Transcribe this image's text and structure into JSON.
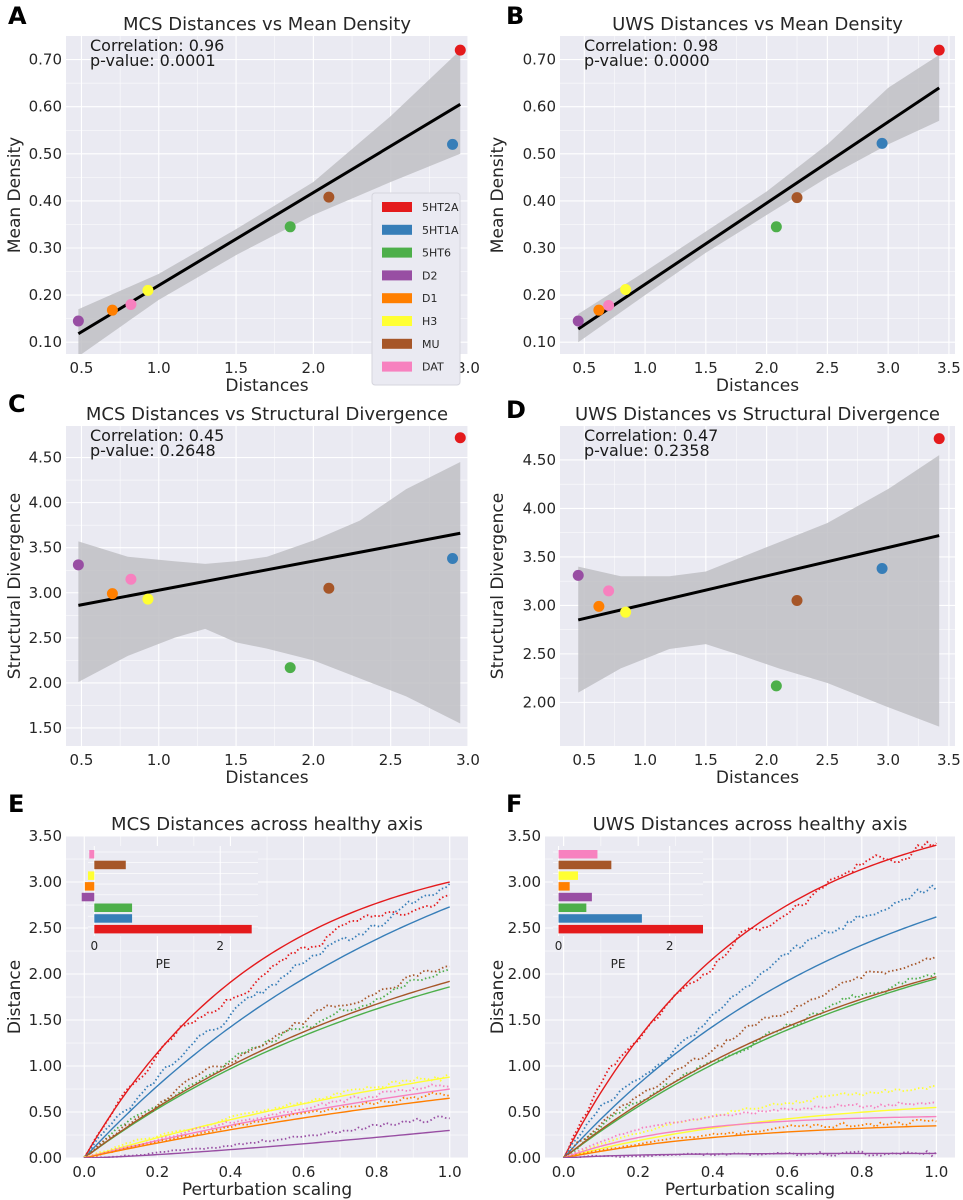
{
  "colors": {
    "5HT2A": "#e41a1c",
    "5HT1A": "#377eb8",
    "5HT6": "#4daf4a",
    "D2": "#984ea3",
    "D1": "#ff7f00",
    "H3": "#ffff33",
    "MU": "#a65628",
    "DAT": "#f781bf"
  },
  "chart_data": [
    {
      "id": "A",
      "type": "scatter",
      "letter": "A",
      "title": "MCS Distances vs Mean Density",
      "xlabel": "Distances",
      "ylabel": "Mean Density",
      "xlim": [
        0.4,
        3.0
      ],
      "ylim": [
        0.075,
        0.75
      ],
      "xticks": [
        "0.5",
        "1.0",
        "1.5",
        "2.0",
        "2.5",
        "3.0"
      ],
      "yticks": [
        "0.10",
        "0.20",
        "0.30",
        "0.40",
        "0.50",
        "0.60",
        "0.70"
      ],
      "correlation": "Correlation: 0.96",
      "pvalue": "p-value: 0.0001",
      "points": [
        {
          "name": "5HT2A",
          "x": 2.95,
          "y": 0.72
        },
        {
          "name": "5HT1A",
          "x": 2.9,
          "y": 0.52
        },
        {
          "name": "5HT6",
          "x": 1.85,
          "y": 0.345
        },
        {
          "name": "D2",
          "x": 0.48,
          "y": 0.145
        },
        {
          "name": "D1",
          "x": 0.7,
          "y": 0.168
        },
        {
          "name": "H3",
          "x": 0.93,
          "y": 0.21
        },
        {
          "name": "MU",
          "x": 2.1,
          "y": 0.408
        },
        {
          "name": "DAT",
          "x": 0.82,
          "y": 0.18
        }
      ],
      "fit": [
        [
          0.48,
          0.118
        ],
        [
          2.95,
          0.605
        ]
      ],
      "band": [
        [
          0.48,
          0.07,
          0.17
        ],
        [
          1.0,
          0.19,
          0.245
        ],
        [
          1.5,
          0.285,
          0.34
        ],
        [
          2.0,
          0.37,
          0.44
        ],
        [
          2.5,
          0.44,
          0.58
        ],
        [
          2.95,
          0.5,
          0.72
        ]
      ],
      "legend": [
        "5HT2A",
        "5HT1A",
        "5HT6",
        "D2",
        "D1",
        "H3",
        "MU",
        "DAT"
      ]
    },
    {
      "id": "B",
      "type": "scatter",
      "letter": "B",
      "title": "UWS Distances vs Mean Density",
      "xlabel": "Distances",
      "ylabel": "Mean Density",
      "xlim": [
        0.3,
        3.55
      ],
      "ylim": [
        0.075,
        0.75
      ],
      "xticks": [
        "0.5",
        "1.0",
        "1.5",
        "2.0",
        "2.5",
        "3.0",
        "3.5"
      ],
      "yticks": [
        "0.10",
        "0.20",
        "0.30",
        "0.40",
        "0.50",
        "0.60",
        "0.70"
      ],
      "correlation": "Correlation: 0.98",
      "pvalue": "p-value: 0.0000",
      "points": [
        {
          "name": "5HT2A",
          "x": 3.42,
          "y": 0.72
        },
        {
          "name": "5HT1A",
          "x": 2.95,
          "y": 0.522
        },
        {
          "name": "5HT6",
          "x": 2.08,
          "y": 0.345
        },
        {
          "name": "D2",
          "x": 0.45,
          "y": 0.145
        },
        {
          "name": "D1",
          "x": 0.62,
          "y": 0.168
        },
        {
          "name": "H3",
          "x": 0.84,
          "y": 0.212
        },
        {
          "name": "MU",
          "x": 2.25,
          "y": 0.407
        },
        {
          "name": "DAT",
          "x": 0.7,
          "y": 0.178
        }
      ],
      "fit": [
        [
          0.45,
          0.128
        ],
        [
          3.42,
          0.64
        ]
      ],
      "band": [
        [
          0.45,
          0.1,
          0.16
        ],
        [
          1.0,
          0.2,
          0.25
        ],
        [
          1.5,
          0.29,
          0.335
        ],
        [
          2.0,
          0.37,
          0.42
        ],
        [
          2.5,
          0.45,
          0.52
        ],
        [
          3.0,
          0.52,
          0.64
        ],
        [
          3.42,
          0.57,
          0.71
        ]
      ]
    },
    {
      "id": "C",
      "type": "scatter",
      "letter": "C",
      "title": "MCS Distances vs Structural Divergence",
      "xlabel": "Distances",
      "ylabel": "Structural Divergence",
      "xlim": [
        0.4,
        3.0
      ],
      "ylim": [
        1.3,
        4.85
      ],
      "xticks": [
        "0.5",
        "1.0",
        "1.5",
        "2.0",
        "2.5",
        "3.0"
      ],
      "yticks": [
        "1.50",
        "2.00",
        "2.50",
        "3.00",
        "3.50",
        "4.00",
        "4.50"
      ],
      "correlation": "Correlation: 0.45",
      "pvalue": "p-value: 0.2648",
      "points": [
        {
          "name": "5HT2A",
          "x": 2.95,
          "y": 4.72
        },
        {
          "name": "5HT1A",
          "x": 2.9,
          "y": 3.38
        },
        {
          "name": "5HT6",
          "x": 1.85,
          "y": 2.17
        },
        {
          "name": "D2",
          "x": 0.48,
          "y": 3.31
        },
        {
          "name": "D1",
          "x": 0.7,
          "y": 2.99
        },
        {
          "name": "H3",
          "x": 0.93,
          "y": 2.93
        },
        {
          "name": "MU",
          "x": 2.1,
          "y": 3.05
        },
        {
          "name": "DAT",
          "x": 0.82,
          "y": 3.15
        }
      ],
      "fit": [
        [
          0.48,
          2.86
        ],
        [
          2.95,
          3.66
        ]
      ],
      "band": [
        [
          0.48,
          2.01,
          3.57
        ],
        [
          0.8,
          2.3,
          3.4
        ],
        [
          1.1,
          2.5,
          3.35
        ],
        [
          1.3,
          2.6,
          3.32
        ],
        [
          1.5,
          2.45,
          3.35
        ],
        [
          1.7,
          2.38,
          3.4
        ],
        [
          2.0,
          2.25,
          3.58
        ],
        [
          2.3,
          2.05,
          3.8
        ],
        [
          2.6,
          1.85,
          4.15
        ],
        [
          2.95,
          1.55,
          4.45
        ]
      ]
    },
    {
      "id": "D",
      "type": "scatter",
      "letter": "D",
      "title": "UWS Distances vs Structural Divergence",
      "xlabel": "Distances",
      "ylabel": "Structural Divergence",
      "xlim": [
        0.3,
        3.55
      ],
      "ylim": [
        1.55,
        4.85
      ],
      "xticks": [
        "0.5",
        "1.0",
        "1.5",
        "2.0",
        "2.5",
        "3.0",
        "3.5"
      ],
      "yticks": [
        "2.00",
        "2.50",
        "3.00",
        "3.50",
        "4.00",
        "4.50"
      ],
      "correlation": "Correlation: 0.47",
      "pvalue": "p-value: 0.2358",
      "points": [
        {
          "name": "5HT2A",
          "x": 3.42,
          "y": 4.72
        },
        {
          "name": "5HT1A",
          "x": 2.95,
          "y": 3.38
        },
        {
          "name": "5HT6",
          "x": 2.08,
          "y": 2.17
        },
        {
          "name": "D2",
          "x": 0.45,
          "y": 3.31
        },
        {
          "name": "D1",
          "x": 0.62,
          "y": 2.99
        },
        {
          "name": "H3",
          "x": 0.84,
          "y": 2.93
        },
        {
          "name": "MU",
          "x": 2.25,
          "y": 3.05
        },
        {
          "name": "DAT",
          "x": 0.7,
          "y": 3.15
        }
      ],
      "fit": [
        [
          0.45,
          2.85
        ],
        [
          3.42,
          3.72
        ]
      ],
      "band": [
        [
          0.45,
          2.1,
          3.4
        ],
        [
          0.8,
          2.35,
          3.3
        ],
        [
          1.2,
          2.55,
          3.3
        ],
        [
          1.5,
          2.6,
          3.35
        ],
        [
          1.8,
          2.48,
          3.5
        ],
        [
          2.1,
          2.35,
          3.65
        ],
        [
          2.5,
          2.2,
          3.85
        ],
        [
          3.0,
          1.95,
          4.2
        ],
        [
          3.42,
          1.75,
          4.55
        ]
      ]
    },
    {
      "id": "E",
      "type": "line",
      "letter": "E",
      "title": "MCS Distances across healthy axis",
      "xlabel": "Perturbation scaling",
      "ylabel": "Distance",
      "xlim": [
        -0.05,
        1.05
      ],
      "ylim": [
        0,
        3.5
      ],
      "xticks": [
        "0.0",
        "0.2",
        "0.4",
        "0.6",
        "0.8",
        "1.0"
      ],
      "yticks": [
        "0.00",
        "0.50",
        "1.00",
        "1.50",
        "2.00",
        "2.50",
        "3.00",
        "3.50"
      ],
      "series": [
        {
          "name": "5HT2A",
          "end": 3.0,
          "curve": 1.0,
          "dotted_end": 2.85
        },
        {
          "name": "5HT1A",
          "end": 2.73,
          "curve": 0.5,
          "dotted_end": 2.88
        },
        {
          "name": "5HT6",
          "end": 1.86,
          "curve": 0.5,
          "dotted_end": 1.95
        },
        {
          "name": "MU",
          "end": 1.92,
          "curve": 0.5,
          "dotted_end": 2.08
        },
        {
          "name": "H3",
          "end": 0.88,
          "curve": 0.3,
          "dotted_end": 0.9
        },
        {
          "name": "DAT",
          "end": 0.75,
          "curve": 0.3,
          "dotted_end": 0.8
        },
        {
          "name": "D1",
          "end": 0.65,
          "curve": 0.3,
          "dotted_end": 0.7
        },
        {
          "name": "D2",
          "end": 0.3,
          "curve": 0.0,
          "dotted_end": 0.45
        }
      ],
      "inset": {
        "xlabel": "PE",
        "xticks": [
          "0",
          "2"
        ],
        "xlim": [
          -0.1,
          2.6
        ],
        "bars": [
          {
            "name": "5HT2A",
            "value": 2.5
          },
          {
            "name": "5HT1A",
            "value": 0.6
          },
          {
            "name": "5HT6",
            "value": 0.6
          },
          {
            "name": "D2",
            "value": -0.2
          },
          {
            "name": "D1",
            "value": -0.15
          },
          {
            "name": "H3",
            "value": -0.1
          },
          {
            "name": "MU",
            "value": 0.5
          },
          {
            "name": "DAT",
            "value": -0.08
          }
        ]
      }
    },
    {
      "id": "F",
      "type": "line",
      "letter": "F",
      "title": "UWS Distances across healthy axis",
      "xlabel": "Perturbation scaling",
      "ylabel": "Distance",
      "xlim": [
        -0.05,
        1.05
      ],
      "ylim": [
        0,
        3.5
      ],
      "xticks": [
        "0.0",
        "0.2",
        "0.4",
        "0.6",
        "0.8",
        "1.0"
      ],
      "yticks": [
        "0.00",
        "0.50",
        "1.00",
        "1.50",
        "2.00",
        "2.50",
        "3.00",
        "3.50"
      ],
      "series": [
        {
          "name": "5HT2A",
          "end": 3.4,
          "curve": 1.0,
          "dotted_end": 3.4
        },
        {
          "name": "5HT1A",
          "end": 2.62,
          "curve": 0.6,
          "dotted_end": 2.92
        },
        {
          "name": "5HT6",
          "end": 1.95,
          "curve": 0.5,
          "dotted_end": 2.05
        },
        {
          "name": "MU",
          "end": 1.97,
          "curve": 0.55,
          "dotted_end": 2.2
        },
        {
          "name": "H3",
          "end": 0.55,
          "curve": 0.8,
          "dotted_end": 0.78
        },
        {
          "name": "DAT",
          "end": 0.45,
          "curve": 1.6,
          "dotted_end": 0.6
        },
        {
          "name": "D1",
          "end": 0.35,
          "curve": 1.0,
          "dotted_end": 0.4
        },
        {
          "name": "D2",
          "end": 0.05,
          "curve": 2.5,
          "dotted_end": 0.05
        }
      ],
      "inset": {
        "xlabel": "PE",
        "xticks": [
          "0",
          "2"
        ],
        "xlim": [
          -0.1,
          2.6
        ],
        "bars": [
          {
            "name": "5HT2A",
            "value": 2.6
          },
          {
            "name": "5HT1A",
            "value": 1.5
          },
          {
            "name": "5HT6",
            "value": 0.5
          },
          {
            "name": "D2",
            "value": 0.6
          },
          {
            "name": "D1",
            "value": 0.2
          },
          {
            "name": "H3",
            "value": 0.35
          },
          {
            "name": "MU",
            "value": 0.95
          },
          {
            "name": "DAT",
            "value": 0.7
          }
        ]
      }
    }
  ]
}
